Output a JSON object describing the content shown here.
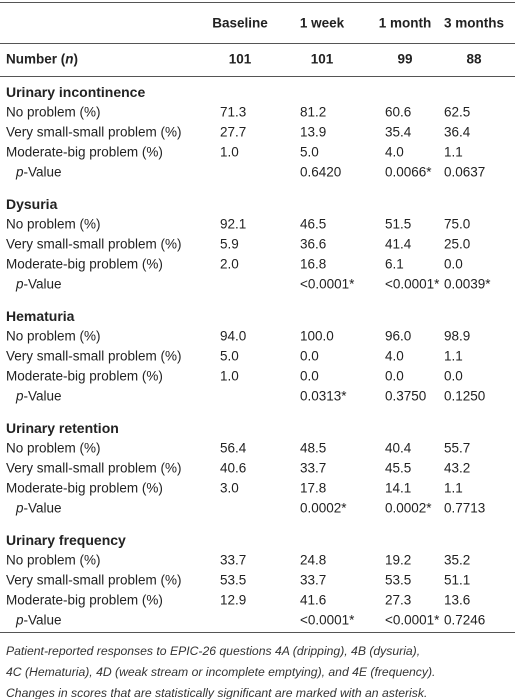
{
  "table": {
    "columns": [
      "Baseline",
      "1 week",
      "1 month",
      "3 months"
    ],
    "number_row": {
      "label": [
        {
          "text": "Number ("
        },
        {
          "text": "n",
          "italic": true
        },
        {
          "text": ")"
        }
      ],
      "values": [
        "101",
        "101",
        "99",
        "88"
      ]
    },
    "sections": [
      {
        "title": "Urinary incontinence",
        "rows": [
          {
            "label": [
              {
                "text": "No problem (%)"
              }
            ],
            "values": [
              "71.3",
              "81.2",
              "60.6",
              "62.5"
            ]
          },
          {
            "label": [
              {
                "text": "Very small-small problem (%)"
              }
            ],
            "values": [
              "27.7",
              "13.9",
              "35.4",
              "36.4"
            ]
          },
          {
            "label": [
              {
                "text": "Moderate-big problem (%)"
              }
            ],
            "values": [
              "1.0",
              "5.0",
              "4.0",
              "1.1"
            ]
          },
          {
            "label": [
              {
                "text": "p",
                "italic": true
              },
              {
                "text": "-Value"
              }
            ],
            "indent": true,
            "values": [
              null,
              "0.6420",
              "0.0066*",
              "0.0637"
            ]
          }
        ]
      },
      {
        "title": "Dysuria",
        "rows": [
          {
            "label": [
              {
                "text": "No problem (%)"
              }
            ],
            "values": [
              "92.1",
              "46.5",
              "51.5",
              "75.0"
            ]
          },
          {
            "label": [
              {
                "text": "Very small-small problem (%)"
              }
            ],
            "values": [
              "5.9",
              "36.6",
              "41.4",
              "25.0"
            ]
          },
          {
            "label": [
              {
                "text": "Moderate-big problem (%)"
              }
            ],
            "values": [
              "2.0",
              "16.8",
              "6.1",
              "0.0"
            ]
          },
          {
            "label": [
              {
                "text": "p",
                "italic": true
              },
              {
                "text": "-Value"
              }
            ],
            "indent": true,
            "values": [
              null,
              "<0.0001*",
              "<0.0001*",
              "0.0039*"
            ]
          }
        ]
      },
      {
        "title": "Hematuria",
        "rows": [
          {
            "label": [
              {
                "text": "No problem (%)"
              }
            ],
            "values": [
              "94.0",
              "100.0",
              "96.0",
              "98.9"
            ]
          },
          {
            "label": [
              {
                "text": "Very small-small problem (%)"
              }
            ],
            "values": [
              "5.0",
              "0.0",
              "4.0",
              "1.1"
            ]
          },
          {
            "label": [
              {
                "text": "Moderate-big problem (%)"
              }
            ],
            "values": [
              "1.0",
              "0.0",
              "0.0",
              "0.0"
            ]
          },
          {
            "label": [
              {
                "text": "p",
                "italic": true
              },
              {
                "text": "-Value"
              }
            ],
            "indent": true,
            "values": [
              null,
              "0.0313*",
              "0.3750",
              "0.1250"
            ]
          }
        ]
      },
      {
        "title": "Urinary retention",
        "rows": [
          {
            "label": [
              {
                "text": "No problem (%)"
              }
            ],
            "values": [
              "56.4",
              "48.5",
              "40.4",
              "55.7"
            ]
          },
          {
            "label": [
              {
                "text": "Very small-small problem (%)"
              }
            ],
            "values": [
              "40.6",
              "33.7",
              "45.5",
              "43.2"
            ]
          },
          {
            "label": [
              {
                "text": "Moderate-big problem (%)"
              }
            ],
            "values": [
              "3.0",
              "17.8",
              "14.1",
              "1.1"
            ]
          },
          {
            "label": [
              {
                "text": "p",
                "italic": true
              },
              {
                "text": "-Value"
              }
            ],
            "indent": true,
            "values": [
              null,
              "0.0002*",
              "0.0002*",
              "0.7713"
            ]
          }
        ]
      },
      {
        "title": "Urinary frequency",
        "rows": [
          {
            "label": [
              {
                "text": "No problem (%)"
              }
            ],
            "values": [
              "33.7",
              "24.8",
              "19.2",
              "35.2"
            ]
          },
          {
            "label": [
              {
                "text": "Very small-small problem (%)"
              }
            ],
            "values": [
              "53.5",
              "33.7",
              "53.5",
              "51.1"
            ]
          },
          {
            "label": [
              {
                "text": "Moderate-big problem (%)"
              }
            ],
            "values": [
              "12.9",
              "41.6",
              "27.3",
              "13.6"
            ]
          },
          {
            "label": [
              {
                "text": "p",
                "italic": true
              },
              {
                "text": "-Value"
              }
            ],
            "indent": true,
            "values": [
              null,
              "<0.0001*",
              "<0.0001*",
              "0.7246"
            ]
          }
        ]
      }
    ]
  },
  "footnote": [
    "Patient-reported responses to EPIC-26 questions 4A (dripping), 4B (dysuria),",
    "4C (Hematuria), 4D (weak stream or incomplete emptying), and 4E (frequency).",
    "Changes in scores that are statistically significant are marked with an asterisk."
  ]
}
